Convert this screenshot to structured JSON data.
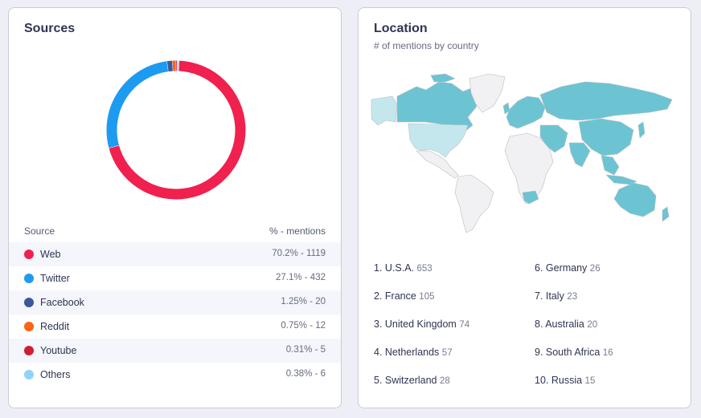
{
  "sources": {
    "title": "Sources",
    "header_source": "Source",
    "header_metric": "% - mentions",
    "items": [
      {
        "name": "Web",
        "value": "70.2% - 1119",
        "percent": 70.2,
        "color": "#f0204f"
      },
      {
        "name": "Twitter",
        "value": "27.1% - 432",
        "percent": 27.1,
        "color": "#1d9bf0"
      },
      {
        "name": "Facebook",
        "value": "1.25% - 20",
        "percent": 1.25,
        "color": "#3b5998"
      },
      {
        "name": "Reddit",
        "value": "0.75% - 12",
        "percent": 0.75,
        "color": "#ff6314"
      },
      {
        "name": "Youtube",
        "value": "0.31% - 5",
        "percent": 0.31,
        "color": "#cc1f36"
      },
      {
        "name": "Others",
        "value": "0.38% - 6",
        "percent": 0.38,
        "color": "#8fd3fa"
      }
    ]
  },
  "location": {
    "title": "Location",
    "subtitle": "# of mentions by country",
    "map_highlight_color": "#6cc4d3",
    "map_highlight_light_color": "#c4e7ee",
    "map_base_color": "#f1f1f3",
    "countries": [
      {
        "label": "1. U.S.A.",
        "count": "653"
      },
      {
        "label": "2. France",
        "count": "105"
      },
      {
        "label": "3. United Kingdom",
        "count": "74"
      },
      {
        "label": "4. Netherlands",
        "count": "57"
      },
      {
        "label": "5. Switzerland",
        "count": "28"
      },
      {
        "label": "6. Germany",
        "count": "26"
      },
      {
        "label": "7. Italy",
        "count": "23"
      },
      {
        "label": "8. Australia",
        "count": "20"
      },
      {
        "label": "9. South Africa",
        "count": "16"
      },
      {
        "label": "10. Russia",
        "count": "15"
      }
    ]
  }
}
